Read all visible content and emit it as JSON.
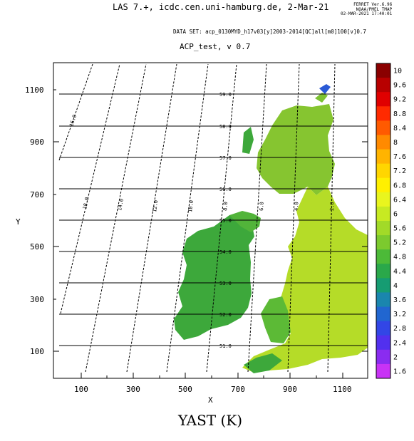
{
  "header": {
    "title": "LAS 7.+, icdc.cen.uni-hamburg.de,  2-Mar-21",
    "ferret_lines": [
      "FERRET  Ver.6.96",
      "NOAA/PMEL TMAP",
      "02-MAR-2021 17:40:01"
    ],
    "dataset": "DATA SET: acp_0130MYD_h17v03[y]2003-2014[QC]all[m0]100[v]0.7",
    "map_title": "ACP_test, v 0.7"
  },
  "axes": {
    "x_label": "X",
    "y_label": "Y",
    "x_ticks": [
      "100",
      "300",
      "500",
      "700",
      "900",
      "1100"
    ],
    "y_ticks": [
      "100",
      "300",
      "500",
      "700",
      "900",
      "1100"
    ]
  },
  "grid_labels": {
    "latitudes": [
      "59.0",
      "58.0",
      "57.0",
      "56.0",
      "55.0",
      "54.0",
      "53.0",
      "52.0",
      "51.0"
    ],
    "longitudes": [
      "16.0",
      "18.0",
      "14.0",
      "12.0",
      "10.0",
      "8.0",
      "6.0",
      "4.0",
      "2.0"
    ]
  },
  "colorbar": {
    "labels": [
      "10",
      "9.6",
      "9.2",
      "8.8",
      "8.4",
      "8",
      "7.6",
      "7.2",
      "6.8",
      "6.4",
      "6",
      "5.6",
      "5.2",
      "4.8",
      "4.4",
      "4",
      "3.6",
      "3.2",
      "2.8",
      "2.4",
      "2",
      "1.6"
    ],
    "colors": [
      "#8a0000",
      "#b80000",
      "#e00000",
      "#ff2a00",
      "#ff5a00",
      "#ff8a00",
      "#ffb400",
      "#ffd600",
      "#fff000",
      "#e9f51e",
      "#c7ea22",
      "#a2da28",
      "#7cca2e",
      "#4cba38",
      "#2aa84a",
      "#169c72",
      "#1a86ae",
      "#2166d0",
      "#3246e6",
      "#5230ee",
      "#8a2cf0",
      "#c833f5"
    ]
  },
  "footer": {
    "variable": "YAST (K)"
  }
}
